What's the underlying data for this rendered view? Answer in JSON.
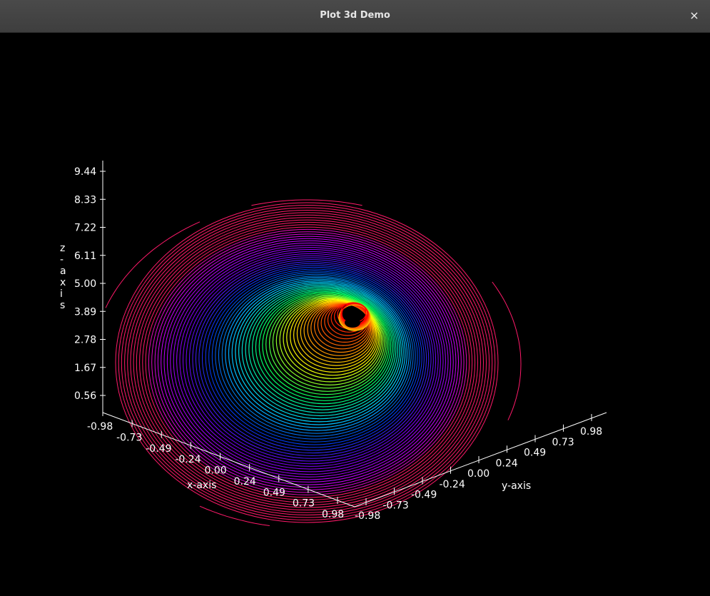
{
  "window": {
    "title": "Plot 3d Demo",
    "close_glyph": "×",
    "close_icon": "close-icon"
  },
  "chart_data": {
    "type": "contour3d",
    "background": "#000000",
    "axis_color": "#ffffff",
    "xlabel": "x-axis",
    "ylabel": "y-axis",
    "zlabel": "z-axis",
    "x_ticks": [
      "-0.98",
      "-0.73",
      "-0.49",
      "-0.24",
      "0.00",
      "0.24",
      "0.49",
      "0.73",
      "0.98"
    ],
    "y_ticks": [
      "-0.98",
      "-0.73",
      "-0.49",
      "-0.24",
      "0.00",
      "0.24",
      "0.49",
      "0.73",
      "0.98"
    ],
    "z_ticks": [
      "0.56",
      "1.67",
      "2.78",
      "3.89",
      "5.00",
      "6.11",
      "7.22",
      "8.33",
      "9.44"
    ],
    "xlim": [
      -0.98,
      0.98
    ],
    "ylim": [
      -0.98,
      0.98
    ],
    "zlim": [
      0,
      10
    ],
    "colormap": [
      "#ff1a6a",
      "#d000ff",
      "#7a00ff",
      "#0040ff",
      "#00d0ff",
      "#00ff60",
      "#ffff00",
      "#ff7000",
      "#ff0000"
    ]
  }
}
